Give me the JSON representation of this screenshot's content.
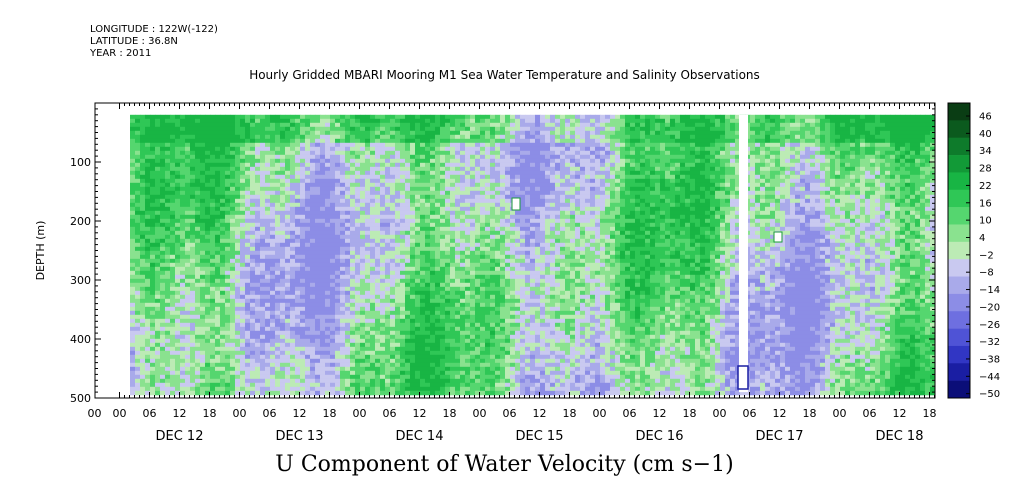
{
  "header": {
    "longitude": "LONGITUDE : 122W(-122)",
    "latitude": "LATITUDE : 36.8N",
    "year": "YEAR : 2011",
    "title": "Hourly Gridded MBARI Mooring M1 Sea Water Temperature and Salinity Observations",
    "bottom_title": "U Component of Water Velocity (cm s−1)"
  },
  "chart_data": {
    "type": "heatmap",
    "title": "Hourly Gridded MBARI Mooring M1 Sea Water Temperature and Salinity Observations",
    "subtitle": "U Component of Water Velocity (cm s-1)",
    "ylabel": "DEPTH (m)",
    "yaxis": {
      "ylim": [
        500,
        0
      ],
      "reversed": true,
      "tick_values": [
        100,
        200,
        300,
        400,
        500
      ]
    },
    "xaxis": {
      "hour_tick_labels": [
        "00",
        "06",
        "12",
        "18",
        "00",
        "06",
        "12",
        "18",
        "00",
        "06",
        "12",
        "18",
        "00",
        "06",
        "12",
        "18",
        "00",
        "06",
        "12",
        "18",
        "00",
        "06",
        "12",
        "18",
        "00",
        "06",
        "12",
        "18"
      ],
      "day_labels": [
        "DEC 12",
        "DEC 13",
        "DEC 14",
        "DEC 15",
        "DEC 16",
        "DEC 17",
        "DEC 18"
      ]
    },
    "colorbar": {
      "labels": [
        "46",
        "40",
        "34",
        "28",
        "22",
        "16",
        "10",
        "4",
        "-2",
        "-8",
        "-14",
        "-20",
        "-26",
        "-32",
        "-38",
        "-44",
        "-50"
      ],
      "range": [
        -50,
        50
      ],
      "colors": [
        "#0a3d14",
        "#0b5a1e",
        "#0e7b2b",
        "#129a37",
        "#18b544",
        "#2fc756",
        "#55d66f",
        "#8ae28f",
        "#bcebb5",
        "#c9c9f0",
        "#a9aaea",
        "#8c8de6",
        "#6e6fe0",
        "#4f53d6",
        "#3136c4",
        "#1a1ea3",
        "#0b0e78"
      ]
    },
    "data_extent": {
      "start": "DEC 12 03h",
      "end": "DEC 18 20h",
      "depth_min": 20,
      "depth_max": 490,
      "missing_data_gap": "DEC 17 ~00h–01h"
    }
  }
}
